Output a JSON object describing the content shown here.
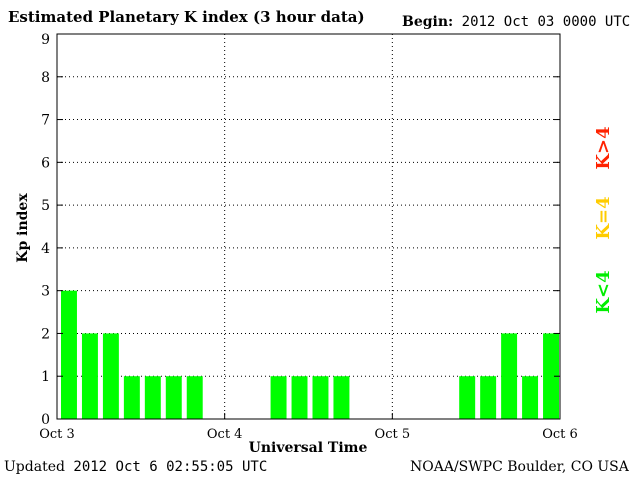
{
  "header": {
    "title": "Estimated Planetary K index (3 hour data)",
    "begin_label": "Begin:",
    "begin_value": "2012 Oct 03 0000 UTC"
  },
  "footer": {
    "updated_label": "Updated",
    "updated_value": "2012 Oct  6 02:55:05 UTC",
    "credit": "NOAA/SWPC Boulder, CO USA"
  },
  "chart_data": {
    "type": "bar",
    "title": "Estimated Planetary K index (3 hour data)",
    "xlabel": "Universal Time",
    "ylabel": "Kp index",
    "ylim": [
      0,
      9
    ],
    "yticks": [
      0,
      1,
      2,
      3,
      4,
      5,
      6,
      7,
      8,
      9
    ],
    "xticks": [
      "Oct 3",
      "Oct 4",
      "Oct 5",
      "Oct 6"
    ],
    "grid": true,
    "bars_per_day": 8,
    "values": [
      3,
      2,
      2,
      1,
      1,
      1,
      1,
      0,
      0,
      0,
      1,
      1,
      1,
      1,
      0,
      0,
      0,
      0,
      0,
      1,
      1,
      2,
      1,
      2
    ],
    "legend": [
      {
        "label": "K<4",
        "color": "#00ee00"
      },
      {
        "label": "K=4",
        "color": "#ffcc00"
      },
      {
        "label": "K>4",
        "color": "#ff2200"
      }
    ],
    "bar_color": "#00ff00"
  }
}
